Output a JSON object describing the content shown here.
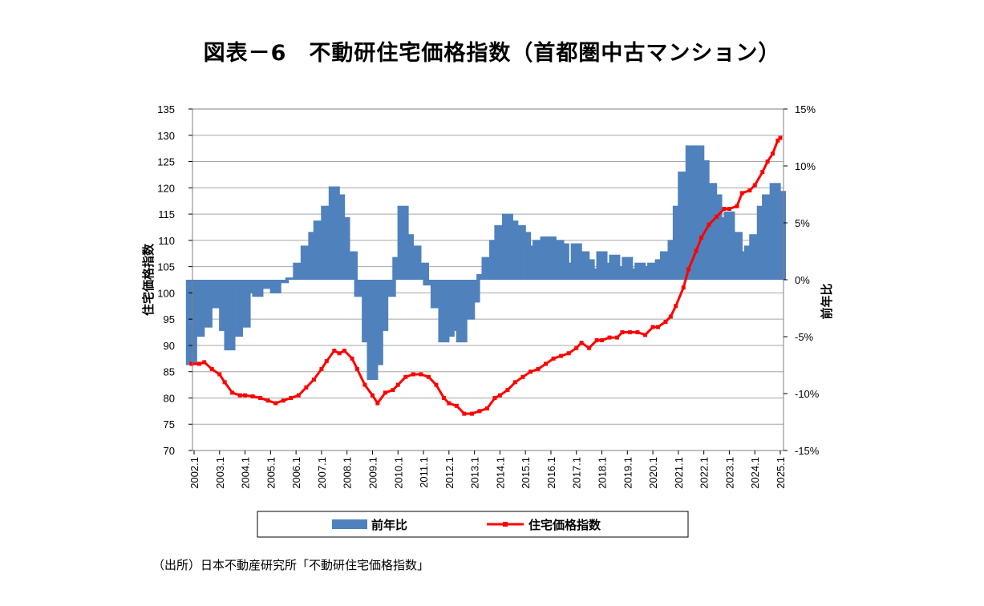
{
  "title": "図表－6　不動研住宅価格指数（首都圏中古マンション）",
  "source": "（出所）日本不動産研究所「不動研住宅価格指数」",
  "colors": {
    "bar": "#4f81bd",
    "line": "#ff0000",
    "grid": "#a6a6a6",
    "plot_border": "#808080"
  },
  "chart_data": {
    "type": "bar+line",
    "x_tick_labels": [
      "2002.1",
      "2003.1",
      "2004.1",
      "2005.1",
      "2006.1",
      "2007.1",
      "2008.1",
      "2009.1",
      "2010.1",
      "2011.1",
      "2012.1",
      "2013.1",
      "2014.1",
      "2015.1",
      "2016.1",
      "2017.1",
      "2018.1",
      "2019.1",
      "2020.1",
      "2021.1",
      "2022.1",
      "2023.1",
      "2024.1",
      "2025.1"
    ],
    "left_axis": {
      "label": "住宅価格指数",
      "min": 70,
      "max": 135,
      "ticks": [
        70,
        75,
        80,
        85,
        90,
        95,
        100,
        105,
        110,
        115,
        120,
        125,
        130,
        135
      ]
    },
    "right_axis": {
      "label": "前年比",
      "min": -15,
      "max": 15,
      "ticks": [
        "-15%",
        "-10%",
        "-5%",
        "0%",
        "5%",
        "10%",
        "15%"
      ]
    },
    "grid": true,
    "legend": {
      "position": "bottom",
      "entries": [
        "前年比",
        "住宅価格指数"
      ]
    },
    "series": [
      {
        "name": "前年比",
        "kind": "bar",
        "axis": "right",
        "unit": "%",
        "points": [
          [
            2002.0,
            -7.5
          ],
          [
            2002.3,
            -5.0
          ],
          [
            2002.6,
            -4.2
          ],
          [
            2002.9,
            -2.5
          ],
          [
            2003.1,
            -1.5
          ],
          [
            2003.3,
            -4.5
          ],
          [
            2003.5,
            -6.2
          ],
          [
            2003.8,
            -5.0
          ],
          [
            2004.1,
            -4.2
          ],
          [
            2004.3,
            -1.2
          ],
          [
            2004.6,
            -1.5
          ],
          [
            2005.0,
            -0.8
          ],
          [
            2005.3,
            -1.2
          ],
          [
            2005.6,
            -0.3
          ],
          [
            2005.9,
            0.2
          ],
          [
            2006.2,
            1.5
          ],
          [
            2006.5,
            3.0
          ],
          [
            2006.8,
            4.2
          ],
          [
            2007.0,
            5.2
          ],
          [
            2007.3,
            6.5
          ],
          [
            2007.6,
            8.2
          ],
          [
            2007.8,
            7.5
          ],
          [
            2008.0,
            5.5
          ],
          [
            2008.3,
            2.5
          ],
          [
            2008.6,
            -1.5
          ],
          [
            2008.9,
            -5.5
          ],
          [
            2009.1,
            -8.8
          ],
          [
            2009.3,
            -7.5
          ],
          [
            2009.5,
            -4.5
          ],
          [
            2009.8,
            -1.5
          ],
          [
            2010.1,
            2.0
          ],
          [
            2010.3,
            6.5
          ],
          [
            2010.5,
            4.0
          ],
          [
            2010.8,
            3.0
          ],
          [
            2011.1,
            1.5
          ],
          [
            2011.3,
            -0.5
          ],
          [
            2011.6,
            -2.5
          ],
          [
            2011.9,
            -5.5
          ],
          [
            2012.1,
            -5.0
          ],
          [
            2012.4,
            -4.5
          ],
          [
            2012.6,
            -5.5
          ],
          [
            2012.9,
            -3.5
          ],
          [
            2013.1,
            -2.0
          ],
          [
            2013.4,
            0.5
          ],
          [
            2013.6,
            2.0
          ],
          [
            2013.9,
            3.5
          ],
          [
            2014.1,
            4.8
          ],
          [
            2014.4,
            5.8
          ],
          [
            2014.6,
            5.2
          ],
          [
            2014.9,
            4.8
          ],
          [
            2015.1,
            4.2
          ],
          [
            2015.4,
            3.0
          ],
          [
            2015.6,
            3.5
          ],
          [
            2015.9,
            3.8
          ],
          [
            2016.1,
            3.8
          ],
          [
            2016.4,
            3.5
          ],
          [
            2016.6,
            3.2
          ],
          [
            2016.9,
            1.5
          ],
          [
            2017.1,
            3.2
          ],
          [
            2017.4,
            2.5
          ],
          [
            2017.6,
            1.8
          ],
          [
            2017.9,
            1.0
          ],
          [
            2018.1,
            2.5
          ],
          [
            2018.4,
            1.5
          ],
          [
            2018.6,
            2.2
          ],
          [
            2018.9,
            1.2
          ],
          [
            2019.1,
            2.0
          ],
          [
            2019.4,
            1.0
          ],
          [
            2019.6,
            1.5
          ],
          [
            2019.9,
            1.2
          ],
          [
            2020.1,
            1.5
          ],
          [
            2020.4,
            1.8
          ],
          [
            2020.6,
            2.5
          ],
          [
            2020.9,
            3.5
          ],
          [
            2021.1,
            6.5
          ],
          [
            2021.3,
            9.5
          ],
          [
            2021.6,
            11.8
          ],
          [
            2021.9,
            11.8
          ],
          [
            2022.1,
            10.5
          ],
          [
            2022.4,
            8.5
          ],
          [
            2022.6,
            7.5
          ],
          [
            2022.9,
            5.5
          ],
          [
            2023.1,
            6.0
          ],
          [
            2023.4,
            4.2
          ],
          [
            2023.6,
            2.5
          ],
          [
            2023.9,
            3.0
          ],
          [
            2024.1,
            4.0
          ],
          [
            2024.4,
            6.5
          ],
          [
            2024.6,
            7.5
          ],
          [
            2024.9,
            8.5
          ],
          [
            2025.1,
            7.8
          ]
        ]
      },
      {
        "name": "住宅価格指数",
        "kind": "line",
        "axis": "left",
        "points": [
          [
            2002.0,
            86.5
          ],
          [
            2002.3,
            86.5
          ],
          [
            2002.5,
            86.8
          ],
          [
            2002.8,
            85.5
          ],
          [
            2003.1,
            84.5
          ],
          [
            2003.3,
            83.0
          ],
          [
            2003.6,
            81.0
          ],
          [
            2003.9,
            80.5
          ],
          [
            2004.1,
            80.5
          ],
          [
            2004.4,
            80.3
          ],
          [
            2004.7,
            80.0
          ],
          [
            2005.0,
            79.5
          ],
          [
            2005.3,
            79.0
          ],
          [
            2005.6,
            79.5
          ],
          [
            2005.9,
            80.0
          ],
          [
            2006.2,
            80.5
          ],
          [
            2006.5,
            82.0
          ],
          [
            2006.8,
            83.5
          ],
          [
            2007.1,
            85.5
          ],
          [
            2007.3,
            87.0
          ],
          [
            2007.6,
            89.0
          ],
          [
            2007.8,
            88.5
          ],
          [
            2008.0,
            89.0
          ],
          [
            2008.3,
            87.5
          ],
          [
            2008.5,
            85.5
          ],
          [
            2008.8,
            82.5
          ],
          [
            2009.1,
            80.5
          ],
          [
            2009.3,
            79.0
          ],
          [
            2009.6,
            81.0
          ],
          [
            2009.9,
            81.5
          ],
          [
            2010.1,
            82.5
          ],
          [
            2010.4,
            84.0
          ],
          [
            2010.7,
            84.5
          ],
          [
            2011.0,
            84.5
          ],
          [
            2011.3,
            84.0
          ],
          [
            2011.6,
            82.5
          ],
          [
            2011.9,
            80.0
          ],
          [
            2012.1,
            79.0
          ],
          [
            2012.4,
            78.5
          ],
          [
            2012.7,
            77.0
          ],
          [
            2013.0,
            77.0
          ],
          [
            2013.3,
            77.5
          ],
          [
            2013.6,
            78.0
          ],
          [
            2013.9,
            80.0
          ],
          [
            2014.1,
            80.5
          ],
          [
            2014.4,
            81.5
          ],
          [
            2014.7,
            83.0
          ],
          [
            2015.0,
            84.0
          ],
          [
            2015.3,
            85.0
          ],
          [
            2015.6,
            85.5
          ],
          [
            2015.9,
            86.5
          ],
          [
            2016.2,
            87.5
          ],
          [
            2016.5,
            88.0
          ],
          [
            2016.8,
            88.5
          ],
          [
            2017.1,
            89.5
          ],
          [
            2017.3,
            90.5
          ],
          [
            2017.6,
            89.5
          ],
          [
            2017.9,
            91.0
          ],
          [
            2018.1,
            91.0
          ],
          [
            2018.4,
            91.5
          ],
          [
            2018.7,
            91.5
          ],
          [
            2018.9,
            92.5
          ],
          [
            2019.2,
            92.5
          ],
          [
            2019.5,
            92.5
          ],
          [
            2019.8,
            92.0
          ],
          [
            2020.1,
            93.5
          ],
          [
            2020.3,
            93.5
          ],
          [
            2020.6,
            94.5
          ],
          [
            2020.8,
            95.5
          ],
          [
            2021.0,
            97.5
          ],
          [
            2021.3,
            101.0
          ],
          [
            2021.5,
            104.5
          ],
          [
            2021.8,
            108.0
          ],
          [
            2022.0,
            110.5
          ],
          [
            2022.3,
            113.0
          ],
          [
            2022.6,
            114.5
          ],
          [
            2022.9,
            116.0
          ],
          [
            2023.1,
            116.0
          ],
          [
            2023.4,
            116.5
          ],
          [
            2023.6,
            119.0
          ],
          [
            2023.9,
            119.5
          ],
          [
            2024.1,
            120.5
          ],
          [
            2024.4,
            123.0
          ],
          [
            2024.6,
            125.0
          ],
          [
            2024.8,
            126.5
          ],
          [
            2025.0,
            129.0
          ],
          [
            2025.1,
            129.5
          ]
        ]
      }
    ]
  }
}
